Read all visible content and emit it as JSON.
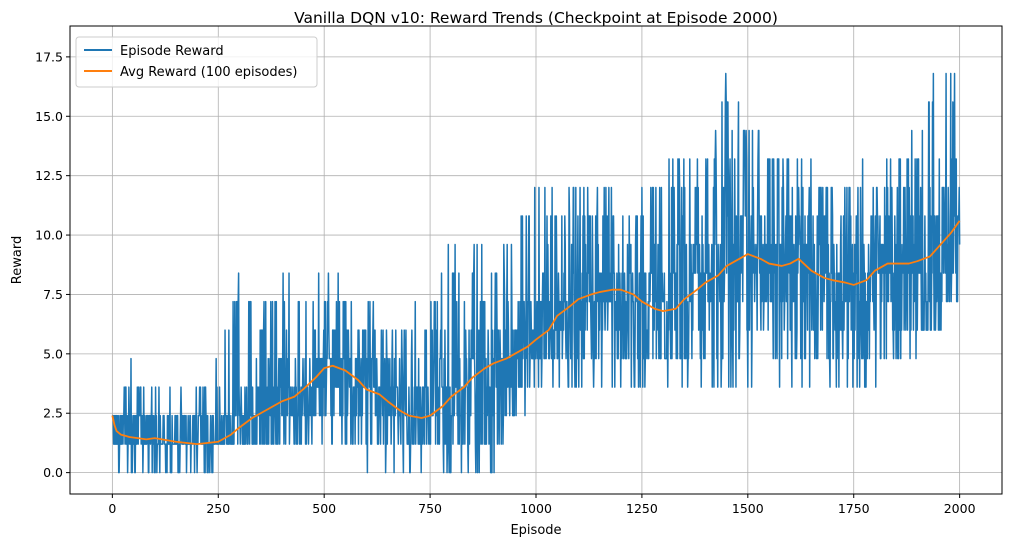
{
  "chart_data": {
    "type": "line",
    "title": "Vanilla DQN v10: Reward Trends (Checkpoint at Episode 2000)",
    "xlabel": "Episode",
    "ylabel": "Reward",
    "xlim": [
      -100,
      2100
    ],
    "ylim": [
      -0.9,
      18.8
    ],
    "xticks": [
      0,
      250,
      500,
      750,
      1000,
      1250,
      1500,
      1750,
      2000
    ],
    "xtick_labels": [
      "0",
      "250",
      "500",
      "750",
      "1000",
      "1250",
      "1500",
      "1750",
      "2000"
    ],
    "yticks": [
      0,
      2.5,
      5,
      7.5,
      10,
      12.5,
      15,
      17.5
    ],
    "ytick_labels": [
      "0.0",
      "2.5",
      "5.0",
      "7.5",
      "10.0",
      "12.5",
      "15.0",
      "17.5"
    ],
    "grid": true,
    "legend": "upper left",
    "reward_step": 1.2,
    "series": [
      {
        "name": "Episode Reward",
        "color": "#1f77b4",
        "envelope": {
          "x": [
            0,
            20,
            50,
            100,
            150,
            200,
            230,
            250,
            300,
            350,
            400,
            450,
            500,
            550,
            600,
            650,
            700,
            750,
            800,
            850,
            900,
            950,
            1000,
            1050,
            1100,
            1150,
            1200,
            1250,
            1300,
            1350,
            1400,
            1450,
            1500,
            1550,
            1600,
            1650,
            1700,
            1750,
            1800,
            1850,
            1900,
            1950,
            2000
          ],
          "min": [
            0,
            0,
            0,
            0,
            0,
            0,
            0,
            1.2,
            1.2,
            1.2,
            1.2,
            1.2,
            1.2,
            1.2,
            0,
            0,
            0,
            0,
            0,
            0,
            0,
            2.4,
            3.6,
            3.6,
            3.6,
            3.6,
            3.6,
            3.6,
            3.6,
            3.6,
            3.6,
            3.6,
            3.6,
            3.6,
            3.6,
            3.6,
            3.6,
            3.6,
            3.6,
            4.8,
            4.8,
            6.0,
            7.2
          ],
          "max": [
            3.6,
            3.6,
            4.8,
            3.6,
            3.6,
            3.6,
            3.6,
            4.8,
            8.4,
            7.2,
            8.4,
            8.4,
            8.4,
            8.4,
            7.2,
            6.0,
            7.2,
            7.2,
            9.6,
            9.6,
            9.6,
            10.8,
            12.0,
            12.0,
            12.0,
            12.0,
            12.0,
            12.0,
            13.2,
            13.2,
            13.2,
            16.8,
            14.4,
            14.4,
            13.2,
            13.2,
            12.0,
            13.2,
            13.2,
            13.2,
            14.4,
            18.0,
            16.8
          ]
        }
      },
      {
        "name": "Avg Reward (100 episodes)",
        "color": "#ff7f0e",
        "x": [
          0,
          5,
          10,
          20,
          40,
          60,
          80,
          100,
          150,
          200,
          250,
          280,
          300,
          330,
          350,
          380,
          400,
          430,
          450,
          480,
          500,
          520,
          550,
          580,
          600,
          630,
          650,
          680,
          700,
          730,
          750,
          780,
          800,
          830,
          850,
          880,
          900,
          930,
          950,
          980,
          1000,
          1030,
          1050,
          1080,
          1100,
          1130,
          1150,
          1180,
          1200,
          1230,
          1250,
          1280,
          1300,
          1330,
          1350,
          1380,
          1400,
          1430,
          1450,
          1480,
          1500,
          1530,
          1550,
          1580,
          1600,
          1620,
          1650,
          1680,
          1700,
          1730,
          1750,
          1780,
          1800,
          1830,
          1850,
          1880,
          1900,
          1930,
          1950,
          1980,
          2000
        ],
        "y": [
          2.4,
          2.0,
          1.75,
          1.6,
          1.5,
          1.45,
          1.4,
          1.45,
          1.3,
          1.2,
          1.3,
          1.6,
          1.9,
          2.3,
          2.5,
          2.8,
          3.0,
          3.2,
          3.5,
          4.0,
          4.4,
          4.5,
          4.3,
          3.9,
          3.5,
          3.3,
          3.0,
          2.6,
          2.4,
          2.3,
          2.4,
          2.8,
          3.2,
          3.6,
          4.0,
          4.4,
          4.6,
          4.8,
          5.0,
          5.3,
          5.6,
          6.0,
          6.6,
          7.0,
          7.3,
          7.5,
          7.6,
          7.7,
          7.7,
          7.5,
          7.2,
          6.9,
          6.8,
          6.9,
          7.3,
          7.7,
          8.0,
          8.3,
          8.7,
          9.0,
          9.2,
          9.0,
          8.8,
          8.7,
          8.8,
          9.0,
          8.5,
          8.2,
          8.1,
          8.0,
          7.9,
          8.1,
          8.5,
          8.8,
          8.8,
          8.8,
          8.9,
          9.1,
          9.5,
          10.1,
          10.6
        ]
      }
    ]
  }
}
